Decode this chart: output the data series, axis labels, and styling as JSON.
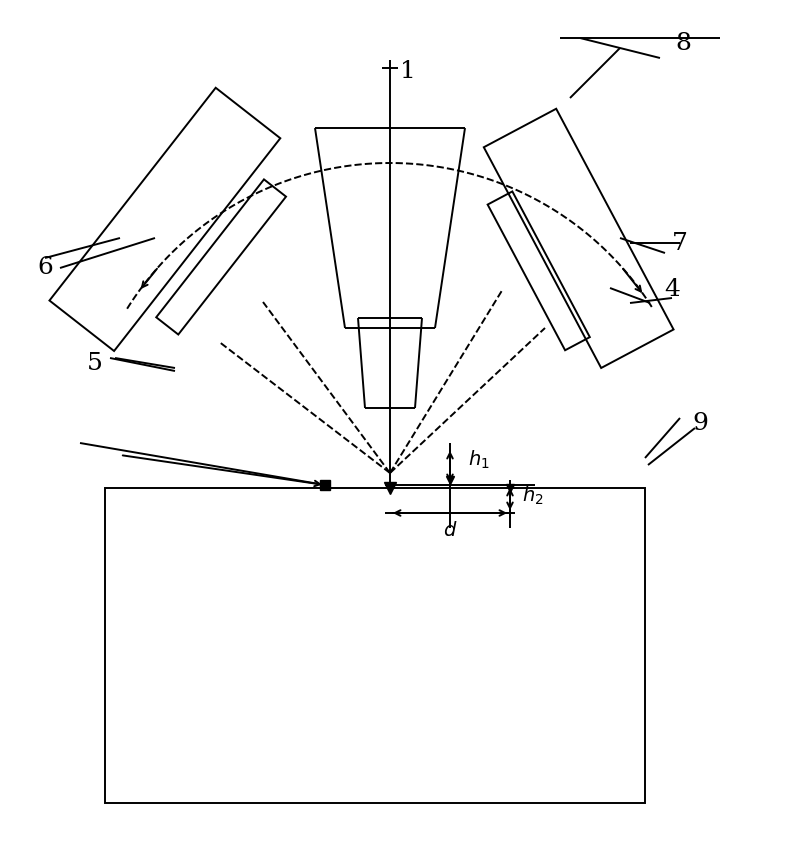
{
  "bg_color": "#ffffff",
  "line_color": "#000000",
  "lw": 1.4,
  "fig_width": 7.93,
  "fig_height": 8.58,
  "dpi": 100
}
